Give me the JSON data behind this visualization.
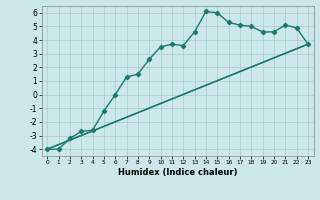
{
  "xlabel": "Humidex (Indice chaleur)",
  "bg_color": "#cce8e8",
  "grid_color": "#aacccc",
  "line_color": "#1a7a6e",
  "xlim": [
    -0.5,
    23.5
  ],
  "ylim": [
    -4.5,
    6.5
  ],
  "xticks": [
    0,
    1,
    2,
    3,
    4,
    5,
    6,
    7,
    8,
    9,
    10,
    11,
    12,
    13,
    14,
    15,
    16,
    17,
    18,
    19,
    20,
    21,
    22,
    23
  ],
  "yticks": [
    -4,
    -3,
    -2,
    -1,
    0,
    1,
    2,
    3,
    4,
    5,
    6
  ],
  "curve1_x": [
    0,
    1,
    2,
    3,
    4,
    5,
    6,
    7,
    8,
    9,
    10,
    11,
    12,
    13,
    14,
    15,
    16,
    17,
    18,
    19,
    20,
    21,
    22,
    23
  ],
  "curve1_y": [
    -4.0,
    -4.0,
    -3.2,
    -2.7,
    -2.6,
    -1.2,
    0.0,
    1.3,
    1.5,
    2.6,
    3.5,
    3.7,
    3.6,
    4.6,
    6.1,
    6.0,
    5.3,
    5.1,
    5.0,
    4.6,
    4.6,
    5.1,
    4.9,
    3.7
  ],
  "line_x": [
    0,
    23
  ],
  "line_y": [
    -4.0,
    3.7
  ],
  "marker": "D",
  "markersize": 2.2,
  "linewidth": 1.0
}
